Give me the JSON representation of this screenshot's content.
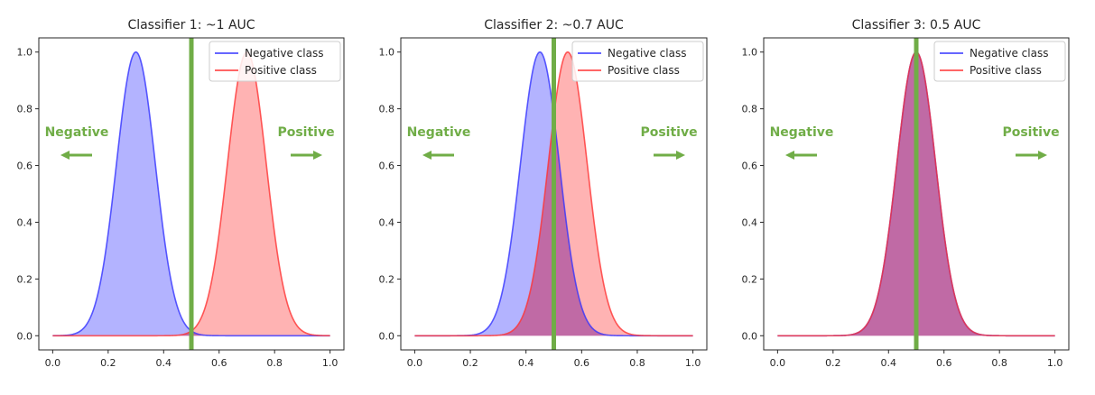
{
  "colors": {
    "negative": "#3333ff",
    "negative_fill": "#b3b3ff",
    "positive": "#ff3333",
    "positive_fill": "#ffb3b3",
    "overlap_fill": "#c06aa5",
    "threshold": "#70ad47",
    "annotation": "#70ad47",
    "axes": "#262626"
  },
  "chart_data": [
    {
      "type": "area",
      "title": "Classifier 1: ~1 AUC",
      "xlim": [
        0,
        1
      ],
      "ylim": [
        0,
        1
      ],
      "xticks": [
        "0.0",
        "0.2",
        "0.4",
        "0.6",
        "0.8",
        "1.0"
      ],
      "yticks": [
        "0.0",
        "0.2",
        "0.4",
        "0.6",
        "0.8",
        "1.0"
      ],
      "series": [
        {
          "name": "Negative class",
          "peak_x": 0.3,
          "peak_y": 1.0,
          "sigma": 0.07
        },
        {
          "name": "Positive class",
          "peak_x": 0.7,
          "peak_y": 1.0,
          "sigma": 0.07
        }
      ],
      "threshold_x": 0.5,
      "legend_position": "top-right",
      "annotations": {
        "left": "Negative",
        "right": "Positive"
      }
    },
    {
      "type": "area",
      "title": "Classifier 2: ~0.7 AUC",
      "xlim": [
        0,
        1
      ],
      "ylim": [
        0,
        1
      ],
      "xticks": [
        "0.0",
        "0.2",
        "0.4",
        "0.6",
        "0.8",
        "1.0"
      ],
      "yticks": [
        "0.0",
        "0.2",
        "0.4",
        "0.6",
        "0.8",
        "1.0"
      ],
      "series": [
        {
          "name": "Negative class",
          "peak_x": 0.45,
          "peak_y": 1.0,
          "sigma": 0.07
        },
        {
          "name": "Positive class",
          "peak_x": 0.55,
          "peak_y": 1.0,
          "sigma": 0.07
        }
      ],
      "threshold_x": 0.5,
      "legend_position": "top-right",
      "annotations": {
        "left": "Negative",
        "right": "Positive"
      }
    },
    {
      "type": "area",
      "title": "Classifier 3: 0.5 AUC",
      "xlim": [
        0,
        1
      ],
      "ylim": [
        0,
        1
      ],
      "xticks": [
        "0.0",
        "0.2",
        "0.4",
        "0.6",
        "0.8",
        "1.0"
      ],
      "yticks": [
        "0.0",
        "0.2",
        "0.4",
        "0.6",
        "0.8",
        "1.0"
      ],
      "series": [
        {
          "name": "Negative class",
          "peak_x": 0.5,
          "peak_y": 1.0,
          "sigma": 0.07
        },
        {
          "name": "Positive class",
          "peak_x": 0.5,
          "peak_y": 1.0,
          "sigma": 0.07
        }
      ],
      "threshold_x": 0.5,
      "legend_position": "top-right",
      "annotations": {
        "left": "Negative",
        "right": "Positive"
      }
    }
  ]
}
